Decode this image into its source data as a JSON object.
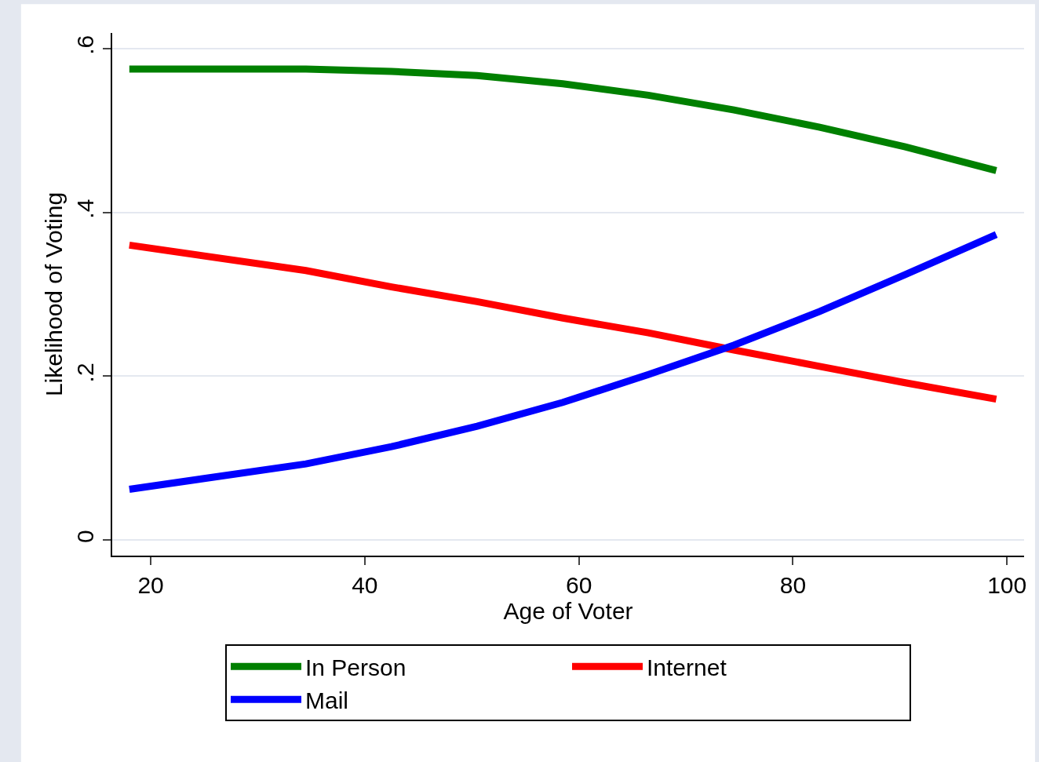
{
  "chart_data": {
    "type": "line",
    "xlabel": "Age of Voter",
    "ylabel": "Likelihood of Voting",
    "x": [
      18,
      34.5,
      42.5,
      50.5,
      58.5,
      66.5,
      74.5,
      82.5,
      90.5,
      99
    ],
    "series": [
      {
        "name": "In Person",
        "color": "#008000",
        "values": [
          0.575,
          0.575,
          0.572,
          0.567,
          0.557,
          0.543,
          0.525,
          0.504,
          0.48,
          0.451
        ]
      },
      {
        "name": "Internet",
        "color": "#ff0000",
        "values": [
          0.36,
          0.329,
          0.309,
          0.291,
          0.271,
          0.253,
          0.232,
          0.212,
          0.192,
          0.172
        ]
      },
      {
        "name": "Mail",
        "color": "#0000ff",
        "values": [
          0.062,
          0.093,
          0.114,
          0.139,
          0.168,
          0.202,
          0.238,
          0.279,
          0.324,
          0.373
        ]
      }
    ],
    "xlim": [
      16.4,
      101.6
    ],
    "xticks": [
      20,
      40,
      60,
      80,
      100
    ],
    "ylim": [
      -0.019,
      0.619
    ],
    "yticks": [
      0,
      {
        "value": 0.2,
        "label": ".2"
      },
      {
        "value": 0.4,
        "label": ".4"
      },
      {
        "value": 0.6,
        "label": ".6"
      }
    ],
    "grid": "y",
    "legend": "bottom",
    "marker": "none",
    "line_style": "solid"
  }
}
